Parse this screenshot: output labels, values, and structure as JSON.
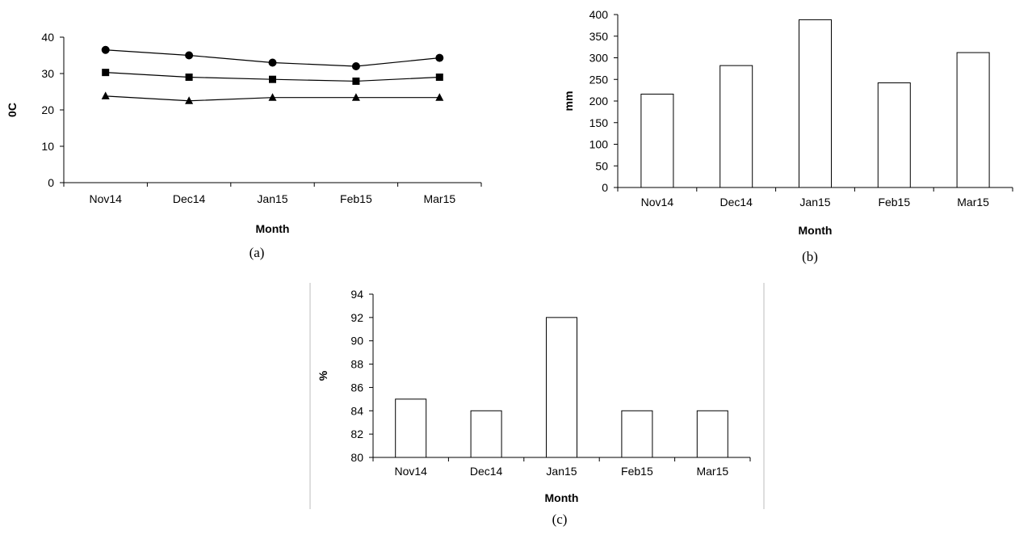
{
  "chart_data": [
    {
      "type": "line",
      "caption": "(a)",
      "xlabel": "Month",
      "ylabel": "0C",
      "categories": [
        "Nov14",
        "Dec14",
        "Jan15",
        "Feb15",
        "Mar15"
      ],
      "ylim": [
        0,
        40
      ],
      "yticks": [
        0,
        10,
        20,
        30,
        40
      ],
      "series": [
        {
          "marker": "circle",
          "values": [
            36.5,
            35,
            33,
            32,
            34.3
          ]
        },
        {
          "marker": "square",
          "values": [
            30.3,
            29,
            28.4,
            27.9,
            29
          ]
        },
        {
          "marker": "triangle",
          "values": [
            23.8,
            22.5,
            23.4,
            23.4,
            23.4
          ]
        }
      ],
      "grid": false,
      "legend": "none",
      "color": "#000000"
    },
    {
      "type": "bar",
      "caption": "(b)",
      "xlabel": "Month",
      "ylabel": "mm",
      "categories": [
        "Nov14",
        "Dec14",
        "Jan15",
        "Feb15",
        "Mar15"
      ],
      "values": [
        216,
        282,
        388,
        242,
        312
      ],
      "ylim": [
        0,
        400
      ],
      "yticks": [
        0,
        50,
        100,
        150,
        200,
        250,
        300,
        350,
        400
      ],
      "grid": false,
      "legend": "none",
      "bar_fill": "#ffffff",
      "color": "#000000"
    },
    {
      "type": "bar",
      "caption": "(c)",
      "xlabel": "Month",
      "ylabel": "%",
      "categories": [
        "Nov14",
        "Dec14",
        "Jan15",
        "Feb15",
        "Mar15"
      ],
      "values": [
        85,
        84,
        92,
        84,
        84
      ],
      "ylim": [
        80,
        94
      ],
      "yticks": [
        80,
        82,
        84,
        86,
        88,
        90,
        92,
        94
      ],
      "grid": false,
      "legend": "none",
      "bar_fill": "#ffffff",
      "color": "#000000"
    }
  ]
}
